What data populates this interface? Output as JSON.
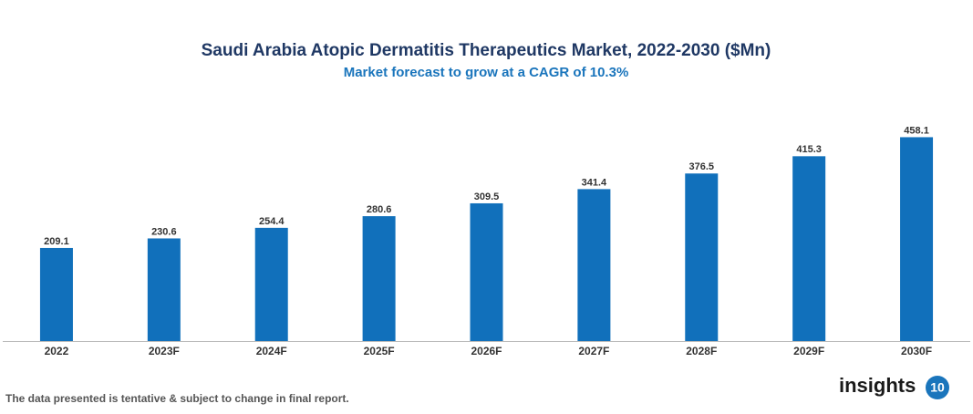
{
  "chart_data": {
    "type": "bar",
    "title": "Saudi Arabia Atopic Dermatitis Therapeutics Market, 2022-2030 ($Mn)",
    "subtitle": "Market forecast to grow at a CAGR of 10.3%",
    "categories": [
      "2022",
      "2023F",
      "2024F",
      "2025F",
      "2026F",
      "2027F",
      "2028F",
      "2029F",
      "2030F"
    ],
    "values": [
      209.1,
      230.6,
      254.4,
      280.6,
      309.5,
      341.4,
      376.5,
      415.3,
      458.1
    ],
    "color": "#1170bb",
    "ylim": [
      0,
      500
    ],
    "grid": false
  },
  "footer": {
    "note": "The data presented is tentative & subject to change in final report.",
    "logo": {
      "text": "insights",
      "badge": "10"
    }
  }
}
